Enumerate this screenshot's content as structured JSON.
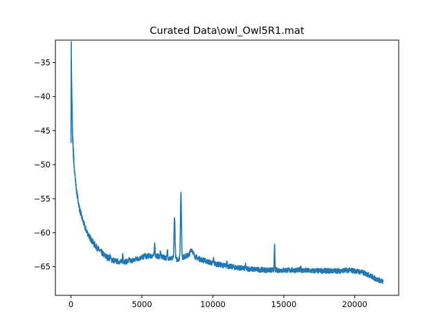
{
  "chart_data": {
    "type": "line",
    "title": "Curated Data\\owl_Owl5R1.mat",
    "xlabel": "",
    "ylabel": "",
    "xlim": [
      -1100,
      23100
    ],
    "ylim": [
      -69.2,
      -31.7
    ],
    "grid": false,
    "x_ticks": [
      0,
      5000,
      10000,
      15000,
      20000
    ],
    "x_tick_labels": [
      "0",
      "5000",
      "10000",
      "15000",
      "20000"
    ],
    "y_ticks": [
      -35,
      -40,
      -45,
      -50,
      -55,
      -60,
      -65
    ],
    "y_tick_labels": [
      "−35",
      "−40",
      "−45",
      "−50",
      "−55",
      "−60",
      "−65"
    ],
    "series": [
      {
        "name": "",
        "color": "#1f77b4",
        "x": [
          0,
          20,
          40,
          60,
          80,
          100,
          120,
          150,
          200,
          300,
          400,
          600,
          800,
          1000,
          1300,
          1600,
          2000,
          2400,
          2800,
          3200,
          3600,
          4000,
          4500,
          5000,
          5500,
          6000,
          6500,
          7000,
          7500,
          8000,
          8500,
          9000,
          10000,
          11000,
          12000,
          13000,
          14000,
          15000,
          16000,
          17000,
          18000,
          19000,
          19600,
          20000,
          20500,
          21000,
          21500,
          22000
        ],
        "y": [
          -46.0,
          -32.2,
          -37.5,
          -40.0,
          -42.0,
          -45.0,
          -46.3,
          -47.5,
          -49.5,
          -52.0,
          -54.0,
          -56.5,
          -58.0,
          -59.3,
          -60.6,
          -61.6,
          -62.6,
          -63.4,
          -63.9,
          -64.2,
          -64.3,
          -64.2,
          -64.0,
          -63.6,
          -63.4,
          -63.4,
          -63.6,
          -63.8,
          -63.9,
          -63.5,
          -63.2,
          -63.8,
          -64.5,
          -64.9,
          -65.2,
          -65.4,
          -65.5,
          -65.5,
          -65.5,
          -65.6,
          -65.6,
          -65.6,
          -65.5,
          -65.6,
          -65.8,
          -66.2,
          -66.8,
          -67.2
        ]
      }
    ],
    "peaks": {
      "x": [
        2750,
        3650,
        4100,
        4600,
        5200,
        5900,
        6300,
        6800,
        7300,
        7750,
        8500,
        10050,
        11000,
        12300,
        14350,
        16200
      ],
      "y": [
        -63.4,
        -63.1,
        -63.9,
        -63.7,
        -63.2,
        -61.4,
        -62.8,
        -62.6,
        -57.6,
        -54.4,
        -62.4,
        -63.8,
        -64.2,
        -64.8,
        -62.0,
        -64.9
      ]
    }
  }
}
